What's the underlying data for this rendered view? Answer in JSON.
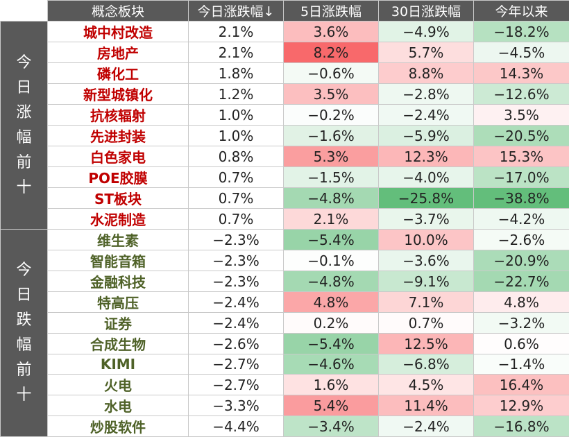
{
  "header": {
    "concept": "概念板块",
    "today": "今日涨跌幅↓",
    "d5": "5日涨跌幅",
    "d30": "30日涨跌幅",
    "ytd": "今年以来"
  },
  "groups": {
    "top_label": "今日涨幅前十",
    "bottom_label": "今日跌幅前十"
  },
  "top_rows": [
    {
      "name": "城中村改造",
      "today": "2.1%",
      "d5": "3.6%",
      "d30": "−4.9%",
      "ytd": "−18.2%"
    },
    {
      "name": "房地产",
      "today": "2.1%",
      "d5": "8.2%",
      "d30": "5.7%",
      "ytd": "−4.5%"
    },
    {
      "name": "磷化工",
      "today": "1.8%",
      "d5": "−0.6%",
      "d30": "8.8%",
      "ytd": "14.3%"
    },
    {
      "name": "新型城镇化",
      "today": "1.2%",
      "d5": "3.5%",
      "d30": "−2.8%",
      "ytd": "−12.6%"
    },
    {
      "name": "抗核辐射",
      "today": "1.0%",
      "d5": "−0.2%",
      "d30": "−2.4%",
      "ytd": "3.5%"
    },
    {
      "name": "先进封装",
      "today": "1.0%",
      "d5": "−1.6%",
      "d30": "−5.9%",
      "ytd": "−20.5%"
    },
    {
      "name": "白色家电",
      "today": "0.8%",
      "d5": "5.3%",
      "d30": "12.3%",
      "ytd": "15.3%"
    },
    {
      "name": "POE胶膜",
      "today": "0.7%",
      "d5": "−1.5%",
      "d30": "−4.0%",
      "ytd": "−17.0%"
    },
    {
      "name": "ST板块",
      "today": "0.7%",
      "d5": "−4.8%",
      "d30": "−25.8%",
      "ytd": "−38.8%"
    },
    {
      "name": "水泥制造",
      "today": "0.7%",
      "d5": "2.1%",
      "d30": "−3.7%",
      "ytd": "−4.2%"
    }
  ],
  "bottom_rows": [
    {
      "name": "维生素",
      "today": "−2.3%",
      "d5": "−5.4%",
      "d30": "10.0%",
      "ytd": "−2.6%"
    },
    {
      "name": "智能音箱",
      "today": "−2.3%",
      "d5": "−0.1%",
      "d30": "−3.6%",
      "ytd": "−20.9%"
    },
    {
      "name": "金融科技",
      "today": "−2.3%",
      "d5": "−4.8%",
      "d30": "−9.1%",
      "ytd": "−22.7%"
    },
    {
      "name": "特高压",
      "today": "−2.4%",
      "d5": "4.8%",
      "d30": "7.1%",
      "ytd": "4.8%"
    },
    {
      "name": "证券",
      "today": "−2.4%",
      "d5": "0.2%",
      "d30": "0.7%",
      "ytd": "−3.2%"
    },
    {
      "name": "合成生物",
      "today": "−2.6%",
      "d5": "−5.4%",
      "d30": "12.5%",
      "ytd": "0.6%"
    },
    {
      "name": "KIMI",
      "today": "−2.7%",
      "d5": "−4.6%",
      "d30": "−6.8%",
      "ytd": "−1.4%"
    },
    {
      "name": "火电",
      "today": "−2.7%",
      "d5": "1.6%",
      "d30": "4.5%",
      "ytd": "16.4%"
    },
    {
      "name": "水电",
      "today": "−3.3%",
      "d5": "5.4%",
      "d30": "11.4%",
      "ytd": "12.9%"
    },
    {
      "name": "炒股软件",
      "today": "−4.4%",
      "d5": "−3.4%",
      "d30": "−2.4%",
      "ytd": "−16.8%"
    }
  ],
  "colors": {
    "header_bg": "#595959",
    "header_text": "#ffffff",
    "up_name": "#c00000",
    "down_name": "#4f6228",
    "positive_max": "#f8696b",
    "negative_max": "#63be7b"
  }
}
